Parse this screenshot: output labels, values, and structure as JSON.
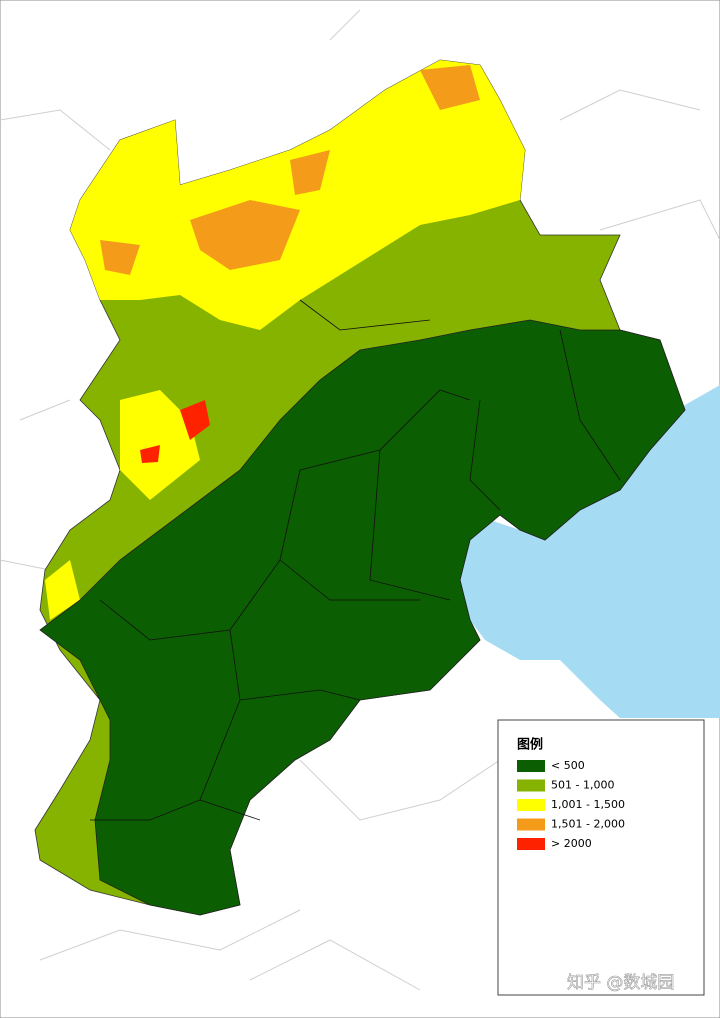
{
  "legend": {
    "title": "图例",
    "items": [
      {
        "label": "< 500",
        "color": "#0b5e02"
      },
      {
        "label": "501 - 1,000",
        "color": "#86b300"
      },
      {
        "label": "1,001 - 1,500",
        "color": "#ffff00"
      },
      {
        "label": "1,501 - 2,000",
        "color": "#f59b1a"
      },
      {
        "label": "> 2000",
        "color": "#ff2200"
      }
    ]
  },
  "watermark": "知乎 @数城园"
}
